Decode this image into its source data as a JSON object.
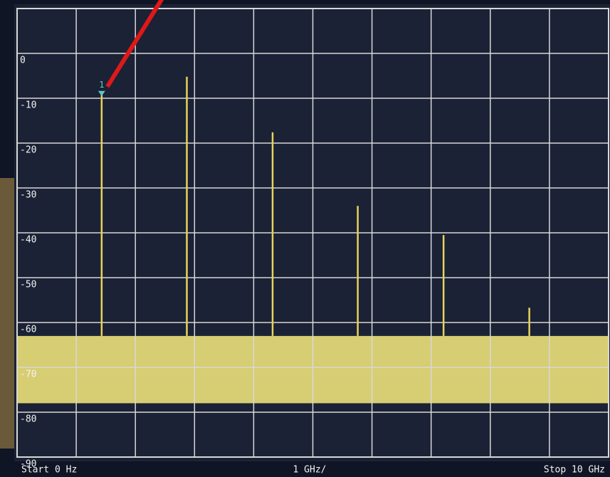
{
  "chart_data": {
    "type": "spectrum",
    "start_label": "Start 0 Hz",
    "scale_label": "1 GHz/",
    "stop_label": "Stop 10 GHz",
    "series": [
      {
        "color": "#e8d25a",
        "x": [
          1.43,
          2.87,
          4.32,
          5.76,
          7.21,
          8.66
        ],
        "values": [
          -9,
          -5.2,
          -17.6,
          -34,
          -40.5,
          -56.7
        ]
      }
    ],
    "noise_band": [
      -78,
      -63
    ],
    "noise_color": "#ece07a",
    "marker": {
      "label": "1",
      "x": 1.43,
      "value": -9,
      "color": "#5fc8c8"
    },
    "xlim": [
      0,
      10
    ],
    "xticks": [
      0,
      1,
      2,
      3,
      4,
      5,
      6,
      7,
      8,
      9,
      10
    ],
    "ylim": [
      -90,
      10
    ],
    "yticks": [
      0,
      -10,
      -20,
      -30,
      -40,
      -50,
      -60,
      -70,
      -80,
      -90
    ],
    "grid": true
  }
}
